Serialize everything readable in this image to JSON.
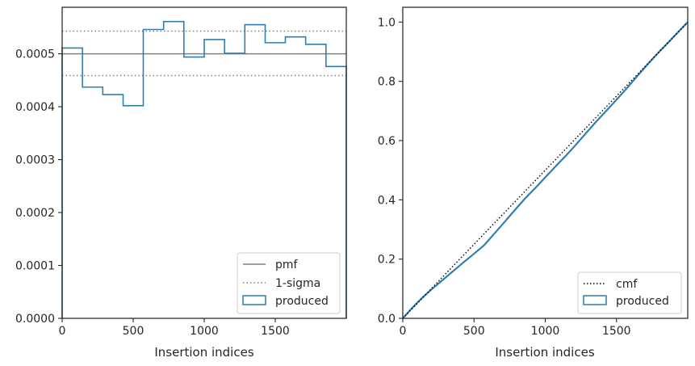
{
  "colors": {
    "produced": "#2e7fb0",
    "pmf": "#808080",
    "sigma": "#808080",
    "cmf": "#000000",
    "frame": "#262626"
  },
  "chart_data": [
    {
      "type": "step",
      "title": "",
      "xlabel": "Insertion indices",
      "ylabel": "",
      "xlim": [
        0,
        2000
      ],
      "ylim": [
        0,
        0.000588
      ],
      "xticks": [
        0,
        500,
        1000,
        1500
      ],
      "xtick_labels": [
        "0",
        "500",
        "1000",
        "1500"
      ],
      "yticks": [
        0,
        0.0001,
        0.0002,
        0.0003,
        0.0004,
        0.0005
      ],
      "ytick_labels": [
        "0.0000",
        "0.0001",
        "0.0002",
        "0.0003",
        "0.0004",
        "0.0005"
      ],
      "grid": false,
      "legend_position": "lower-right",
      "legend": [
        "pmf",
        "1-sigma",
        "produced"
      ],
      "reference_lines": {
        "pmf": 0.0005,
        "sigma_upper": 0.000543,
        "sigma_lower": 0.000459
      },
      "series": [
        {
          "name": "produced",
          "bin_edges": [
            0,
            143,
            286,
            429,
            571,
            714,
            857,
            1000,
            1143,
            1286,
            1429,
            1571,
            1714,
            1857,
            2000
          ],
          "values": [
            0.000511,
            0.000437,
            0.000423,
            0.000402,
            0.000546,
            0.000561,
            0.000494,
            0.000527,
            0.000501,
            0.000555,
            0.000521,
            0.000532,
            0.000518,
            0.000476
          ]
        }
      ]
    },
    {
      "type": "line",
      "title": "",
      "xlabel": "Insertion indices",
      "ylabel": "",
      "xlim": [
        0,
        2000
      ],
      "ylim": [
        0,
        1.05
      ],
      "xticks": [
        0,
        500,
        1000,
        1500
      ],
      "xtick_labels": [
        "0",
        "500",
        "1000",
        "1500"
      ],
      "yticks": [
        0,
        0.2,
        0.4,
        0.6,
        0.8,
        1.0
      ],
      "ytick_labels": [
        "0.0",
        "0.2",
        "0.4",
        "0.6",
        "0.8",
        "1.0"
      ],
      "grid": false,
      "legend_position": "lower-right",
      "legend": [
        "cmf",
        "produced"
      ],
      "series": [
        {
          "name": "cmf",
          "x": [
            0,
            2000
          ],
          "y": [
            0,
            1.0
          ]
        },
        {
          "name": "produced",
          "x": [
            0,
            50,
            100,
            143,
            200,
            286,
            350,
            429,
            500,
            571,
            650,
            714,
            800,
            857,
            950,
            1000,
            1100,
            1143,
            1200,
            1286,
            1350,
            1429,
            1500,
            1571,
            1650,
            1714,
            1800,
            1857,
            1950,
            2000
          ],
          "y": [
            0,
            0.027,
            0.052,
            0.072,
            0.097,
            0.132,
            0.158,
            0.19,
            0.218,
            0.247,
            0.29,
            0.325,
            0.373,
            0.404,
            0.45,
            0.476,
            0.527,
            0.548,
            0.578,
            0.625,
            0.66,
            0.701,
            0.738,
            0.776,
            0.82,
            0.855,
            0.9,
            0.928,
            0.975,
            1.0
          ]
        }
      ]
    }
  ]
}
